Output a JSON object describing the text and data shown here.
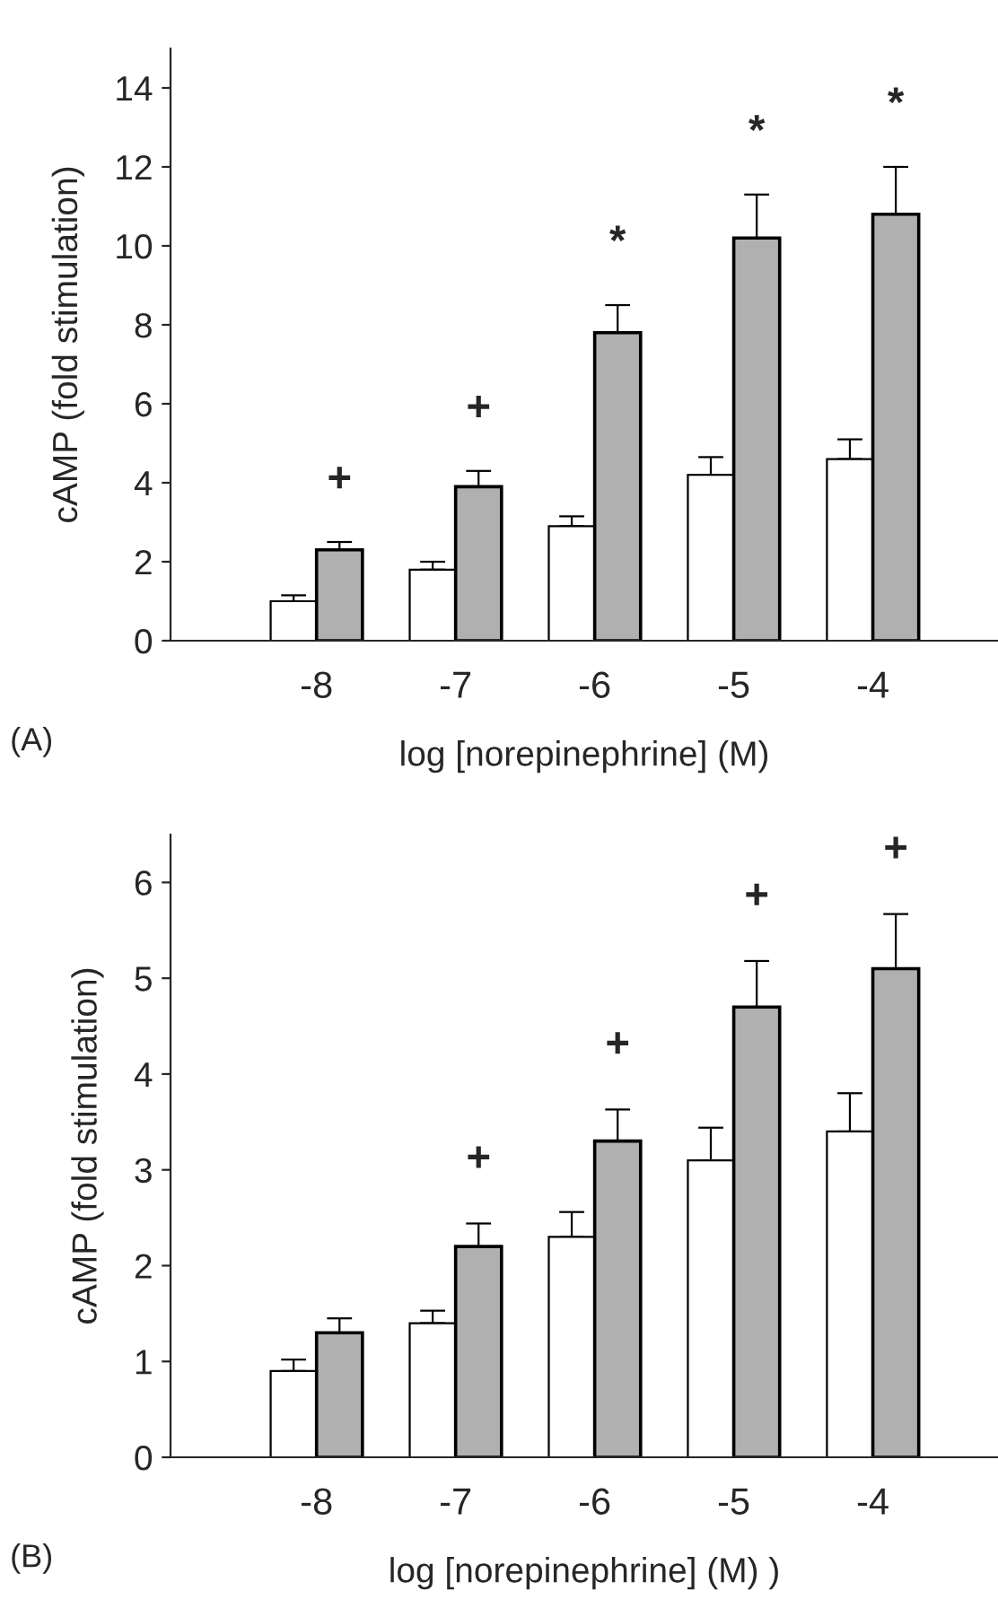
{
  "chart_data": [
    {
      "type": "bar",
      "ylabel": "cAMP (fold stimulation)",
      "xlabel": "log [norepinephrine] (M)",
      "categories": [
        "-8",
        "-7",
        "-6",
        "-5",
        "-4"
      ],
      "ylim": [
        0,
        15
      ],
      "yticks": [
        0,
        2,
        4,
        6,
        8,
        10,
        12,
        14
      ],
      "grid": false,
      "legend": false,
      "series": [
        {
          "color": "#ffffff",
          "values": [
            1.0,
            1.8,
            2.9,
            4.2,
            4.6
          ],
          "errors": [
            [
              1.0,
              1.15
            ],
            [
              1.8,
              2.0
            ],
            [
              2.9,
              3.15
            ],
            [
              4.2,
              4.65
            ],
            [
              4.6,
              5.1
            ]
          ]
        },
        {
          "color": "#b0b0b0",
          "values": [
            2.3,
            3.9,
            7.8,
            10.2,
            10.8
          ],
          "errors": [
            [
              2.3,
              2.5
            ],
            [
              3.9,
              4.3
            ],
            [
              7.8,
              8.5
            ],
            [
              10.2,
              11.3
            ],
            [
              10.8,
              12.0
            ]
          ]
        }
      ],
      "annotations": [
        "(A)",
        "+",
        "+",
        "*",
        "*",
        "*"
      ]
    },
    {
      "type": "bar",
      "ylabel": "cAMP (fold stimulation)",
      "xlabel": "log [norepinephrine] (M) )",
      "categories": [
        "-8",
        "-7",
        "-6",
        "-5",
        "-4"
      ],
      "ylim": [
        0,
        6.5
      ],
      "yticks": [
        0,
        1,
        2,
        3,
        4,
        5,
        6
      ],
      "grid": false,
      "legend": false,
      "series": [
        {
          "color": "#ffffff",
          "values": [
            0.9,
            1.4,
            2.3,
            3.1,
            3.4
          ],
          "errors": [
            [
              0.9,
              1.02
            ],
            [
              1.4,
              1.53
            ],
            [
              2.3,
              2.56
            ],
            [
              3.1,
              3.44
            ],
            [
              3.4,
              3.8
            ]
          ]
        },
        {
          "color": "#b0b0b0",
          "values": [
            1.3,
            2.2,
            3.3,
            4.7,
            5.1
          ],
          "errors": [
            [
              1.3,
              1.45
            ],
            [
              2.2,
              2.44
            ],
            [
              3.3,
              3.63
            ],
            [
              4.7,
              5.18
            ],
            [
              5.1,
              5.67
            ]
          ]
        }
      ],
      "annotations": [
        "(B)",
        "+",
        "+",
        "+",
        "+"
      ]
    }
  ]
}
